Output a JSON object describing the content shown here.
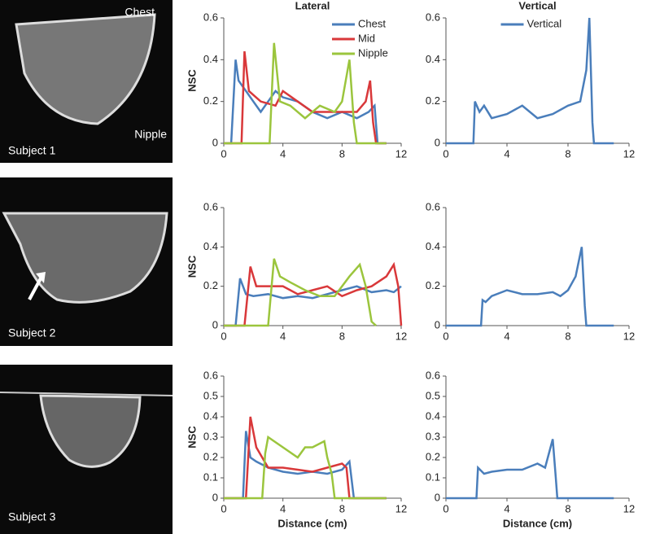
{
  "images": [
    {
      "label": "Subject 1",
      "top": "Chest",
      "bottom": "Nipple"
    },
    {
      "label": "Subject 2"
    },
    {
      "label": "Subject 3"
    }
  ],
  "chart_data": [
    {
      "type": "line",
      "title": "Lateral",
      "y_label": "NSC",
      "legend": "upper right",
      "xlim": [
        0,
        12
      ],
      "xticks": [
        0,
        4,
        8,
        12
      ],
      "ylim": [
        0,
        0.6
      ],
      "yticks": [
        0,
        0.2,
        0.4,
        0.6
      ],
      "series": [
        {
          "name": "Chest",
          "color": "#4a7ebb",
          "x": [
            0,
            0.5,
            0.8,
            1,
            1.5,
            2,
            2.5,
            3,
            3.5,
            4,
            5,
            6,
            7,
            8,
            9,
            9.8,
            10.2,
            10.4,
            11
          ],
          "values": [
            0,
            0,
            0.4,
            0.3,
            0.25,
            0.2,
            0.15,
            0.2,
            0.25,
            0.22,
            0.2,
            0.15,
            0.12,
            0.15,
            0.12,
            0.15,
            0.18,
            0,
            0
          ]
        },
        {
          "name": "Mid",
          "color": "#d9383a",
          "x": [
            0,
            1.2,
            1.4,
            1.7,
            2.5,
            3.5,
            4,
            5,
            6,
            7,
            8,
            9,
            9.6,
            9.9,
            10.1,
            10.3,
            11
          ],
          "values": [
            0,
            0,
            0.44,
            0.25,
            0.2,
            0.18,
            0.25,
            0.2,
            0.15,
            0.15,
            0.15,
            0.15,
            0.2,
            0.3,
            0.1,
            0,
            0
          ]
        },
        {
          "name": "Nipple",
          "color": "#9bc53d",
          "x": [
            0,
            3.1,
            3.4,
            3.8,
            4.5,
            5.5,
            6.5,
            7.5,
            8,
            8.5,
            8.8,
            9,
            11
          ],
          "values": [
            0,
            0,
            0.48,
            0.2,
            0.18,
            0.12,
            0.18,
            0.15,
            0.2,
            0.4,
            0.1,
            0,
            0
          ]
        }
      ]
    },
    {
      "type": "line",
      "title": "Vertical",
      "legend": "upper center",
      "xlim": [
        0,
        12
      ],
      "xticks": [
        0,
        4,
        8,
        12
      ],
      "ylim": [
        0,
        0.6
      ],
      "yticks": [
        0,
        0.2,
        0.4,
        0.6
      ],
      "series": [
        {
          "name": "Vertical",
          "color": "#4a7ebb",
          "x": [
            0,
            1.8,
            1.9,
            2.2,
            2.5,
            3,
            4,
            5,
            6,
            7,
            8,
            8.8,
            9.2,
            9.4,
            9.6,
            9.7,
            11
          ],
          "values": [
            0,
            0,
            0.2,
            0.15,
            0.18,
            0.12,
            0.14,
            0.18,
            0.12,
            0.14,
            0.18,
            0.2,
            0.35,
            0.6,
            0.1,
            0,
            0
          ]
        }
      ]
    },
    {
      "type": "line",
      "y_label": "NSC",
      "xlim": [
        0,
        12
      ],
      "xticks": [
        0,
        4,
        8,
        12
      ],
      "ylim": [
        0,
        0.6
      ],
      "yticks": [
        0,
        0.2,
        0.4,
        0.6
      ],
      "series": [
        {
          "color": "#4a7ebb",
          "x": [
            0,
            0.8,
            1.1,
            1.5,
            2,
            3,
            4,
            5,
            6,
            7,
            8,
            9,
            10,
            11,
            11.5,
            12
          ],
          "values": [
            0,
            0,
            0.24,
            0.16,
            0.15,
            0.16,
            0.14,
            0.15,
            0.14,
            0.16,
            0.18,
            0.2,
            0.17,
            0.18,
            0.17,
            0.2
          ]
        },
        {
          "color": "#d9383a",
          "x": [
            0,
            1.4,
            1.8,
            2.2,
            3,
            4,
            5,
            6,
            7,
            8,
            9,
            10,
            11,
            11.5,
            11.8,
            12
          ],
          "values": [
            0,
            0,
            0.3,
            0.2,
            0.2,
            0.2,
            0.16,
            0.18,
            0.2,
            0.15,
            0.18,
            0.2,
            0.25,
            0.31,
            0.2,
            0
          ]
        },
        {
          "color": "#9bc53d",
          "x": [
            0,
            3,
            3.4,
            3.8,
            4.5,
            5.5,
            6.5,
            7.5,
            8.5,
            9.2,
            9.6,
            10,
            10.3
          ],
          "values": [
            0,
            0,
            0.34,
            0.25,
            0.22,
            0.18,
            0.15,
            0.15,
            0.25,
            0.31,
            0.2,
            0.02,
            0
          ]
        }
      ]
    },
    {
      "type": "line",
      "xlim": [
        0,
        12
      ],
      "xticks": [
        0,
        4,
        8,
        12
      ],
      "ylim": [
        0,
        0.6
      ],
      "yticks": [
        0,
        0.2,
        0.4,
        0.6
      ],
      "series": [
        {
          "color": "#4a7ebb",
          "x": [
            0,
            2.3,
            2.4,
            2.6,
            3,
            4,
            5,
            6,
            7,
            7.5,
            8,
            8.5,
            8.9,
            9.1,
            9.2,
            11
          ],
          "values": [
            0,
            0,
            0.13,
            0.12,
            0.15,
            0.18,
            0.16,
            0.16,
            0.17,
            0.15,
            0.18,
            0.25,
            0.4,
            0.1,
            0,
            0
          ]
        }
      ]
    },
    {
      "type": "line",
      "y_label": "NSC",
      "x_label": "Distance (cm)",
      "xlim": [
        0,
        12
      ],
      "xticks": [
        0,
        4,
        8,
        12
      ],
      "ylim": [
        0,
        0.6
      ],
      "yticks": [
        0,
        0.1,
        0.2,
        0.3,
        0.4,
        0.5,
        0.6
      ],
      "series": [
        {
          "color": "#4a7ebb",
          "x": [
            0,
            1.3,
            1.5,
            1.8,
            2.2,
            3,
            4,
            5,
            6,
            7,
            8,
            8.5,
            8.8,
            11
          ],
          "values": [
            0,
            0,
            0.33,
            0.2,
            0.18,
            0.15,
            0.13,
            0.12,
            0.13,
            0.12,
            0.14,
            0.18,
            0,
            0
          ]
        },
        {
          "color": "#d9383a",
          "x": [
            0,
            1.5,
            1.8,
            2.2,
            3,
            4,
            5,
            6,
            7,
            8,
            8.3,
            8.5,
            11
          ],
          "values": [
            0,
            0,
            0.4,
            0.25,
            0.15,
            0.15,
            0.14,
            0.13,
            0.15,
            0.17,
            0.15,
            0,
            0
          ]
        },
        {
          "color": "#9bc53d",
          "x": [
            0,
            2.6,
            2.8,
            3,
            4,
            5,
            5.5,
            6,
            6.8,
            7,
            7.3,
            7.5,
            11
          ],
          "values": [
            0,
            0,
            0.22,
            0.3,
            0.25,
            0.2,
            0.25,
            0.25,
            0.28,
            0.2,
            0.12,
            0,
            0
          ]
        }
      ]
    },
    {
      "type": "line",
      "x_label": "Distance (cm)",
      "xlim": [
        0,
        12
      ],
      "xticks": [
        0,
        4,
        8,
        12
      ],
      "ylim": [
        0,
        0.6
      ],
      "yticks": [
        0,
        0.1,
        0.2,
        0.3,
        0.4,
        0.5,
        0.6
      ],
      "series": [
        {
          "color": "#4a7ebb",
          "x": [
            0,
            2,
            2.1,
            2.5,
            3,
            4,
            5,
            6,
            6.5,
            7,
            7.2,
            7.3,
            11
          ],
          "values": [
            0,
            0,
            0.15,
            0.12,
            0.13,
            0.14,
            0.14,
            0.17,
            0.15,
            0.29,
            0.1,
            0,
            0
          ]
        }
      ]
    }
  ]
}
